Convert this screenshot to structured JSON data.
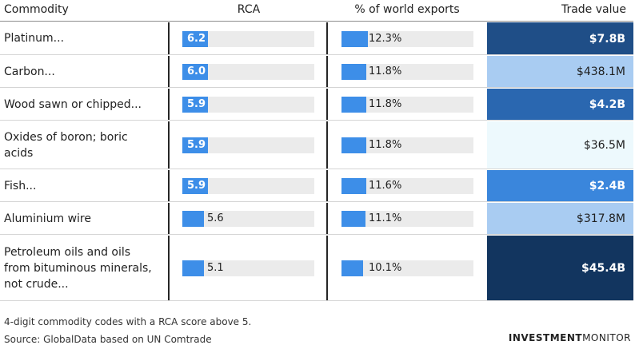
{
  "headers": {
    "commodity": "Commodity",
    "rca": "RCA",
    "pct": "% of world exports",
    "trade": "Trade value"
  },
  "chart_data": {
    "type": "table",
    "rca_max": 10,
    "pct_max": 30,
    "rows": [
      {
        "commodity": "Platinum...",
        "rca": 6.2,
        "rca_label": "6.2",
        "pct": 12.3,
        "pct_label": "12.3%",
        "trade_value": 7.8,
        "trade_label": "$7.8B",
        "color": "#1f4e87",
        "text_color": "#ffffff"
      },
      {
        "commodity": "Carbon...",
        "rca": 6.0,
        "rca_label": "6.0",
        "pct": 11.8,
        "pct_label": "11.8%",
        "trade_value": 0.4381,
        "trade_label": "$438.1M",
        "color": "#a9ccf2",
        "text_color": "#1f1f1f"
      },
      {
        "commodity": "Wood sawn or chipped...",
        "rca": 5.9,
        "rca_label": "5.9",
        "pct": 11.8,
        "pct_label": "11.8%",
        "trade_value": 4.2,
        "trade_label": "$4.2B",
        "color": "#2a67b0",
        "text_color": "#ffffff"
      },
      {
        "commodity": "Oxides of boron; boric acids",
        "rca": 5.9,
        "rca_label": "5.9",
        "pct": 11.8,
        "pct_label": "11.8%",
        "trade_value": 0.0365,
        "trade_label": "$36.5M",
        "color": "#edf9fd",
        "text_color": "#1f1f1f"
      },
      {
        "commodity": "Fish...",
        "rca": 5.9,
        "rca_label": "5.9",
        "pct": 11.6,
        "pct_label": "11.6%",
        "trade_value": 2.4,
        "trade_label": "$2.4B",
        "color": "#3a86dc",
        "text_color": "#ffffff"
      },
      {
        "commodity": "Aluminium wire",
        "rca": 5.6,
        "rca_label": "5.6",
        "pct": 11.1,
        "pct_label": "11.1%",
        "trade_value": 0.3178,
        "trade_label": "$317.8M",
        "color": "#a9ccf2",
        "text_color": "#1f1f1f"
      },
      {
        "commodity": "Petroleum oils and oils from bituminous minerals, not crude...",
        "rca": 5.1,
        "rca_label": "5.1",
        "pct": 10.1,
        "pct_label": "10.1%",
        "trade_value": 45.4,
        "trade_label": "$45.4B",
        "color": "#12355f",
        "text_color": "#ffffff"
      }
    ]
  },
  "footer": {
    "note": "4-digit commodity codes with a RCA score above 5.",
    "source": "Source: GlobalData based on UN Comtrade",
    "brand_1": "INVESTMENT",
    "brand_2": "MONITOR"
  }
}
